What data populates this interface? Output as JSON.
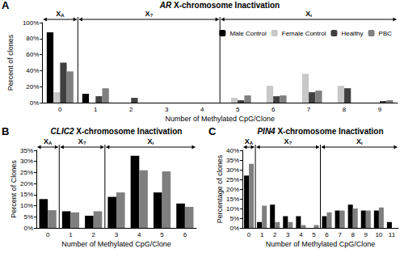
{
  "chart_data": [
    {
      "panel": "A",
      "type": "bar",
      "title": "AR X-chromosome Inactivation",
      "x_label": "Number of Methylated CpG/Clone",
      "y_label": "Percent of clones",
      "categories": [
        0,
        1,
        2,
        3,
        4,
        5,
        6,
        7,
        8,
        9
      ],
      "series": [
        {
          "name": "Male Control",
          "color": "#000000",
          "values": [
            88,
            11,
            0,
            0,
            0,
            0,
            0,
            0,
            0,
            0
          ]
        },
        {
          "name": "Female Control",
          "color": "#c8c8c8",
          "values": [
            13,
            0,
            0,
            0,
            0,
            6,
            21,
            36,
            21,
            0
          ]
        },
        {
          "name": "Healthy",
          "color": "#404040",
          "values": [
            50,
            8,
            6,
            0,
            0,
            3,
            8,
            13,
            18,
            2
          ]
        },
        {
          "name": "PBC",
          "color": "#808080",
          "values": [
            39,
            18,
            0,
            0,
            0,
            9,
            9,
            15,
            0,
            3
          ]
        }
      ],
      "ylim": [
        0,
        100
      ],
      "yticks": [
        {
          "value": 0,
          "label": "0%"
        },
        {
          "value": 20,
          "label": "20%"
        },
        {
          "value": 40,
          "label": "40%"
        },
        {
          "value": 60,
          "label": "60%"
        },
        {
          "value": 80,
          "label": "80%"
        },
        {
          "value": 100,
          "label": "100%"
        }
      ],
      "regions": [
        {
          "label": "X",
          "subscript": "A",
          "start": 0,
          "end": 0
        },
        {
          "label": "X",
          "subscript": "?",
          "start": 1,
          "end": 4
        },
        {
          "label": "X",
          "subscript": "i",
          "start": 5,
          "end": 9
        }
      ],
      "legend": "top-right",
      "grid": false
    },
    {
      "panel": "B",
      "type": "bar",
      "title": "CLIC2 X-chromosome Inactivation",
      "x_label": "Number of Methylated CpG/Clone",
      "y_label": "Percent of Clones",
      "categories": [
        0,
        1,
        2,
        3,
        4,
        5,
        6
      ],
      "series": [
        {
          "color": "#000000",
          "values": [
            13,
            7.5,
            5.5,
            14,
            32.5,
            16,
            11
          ]
        },
        {
          "color": "#7f7f7f",
          "values": [
            8,
            7,
            7.5,
            16,
            26,
            25.5,
            9.5
          ]
        }
      ],
      "ylim": [
        0,
        35
      ],
      "yticks": [
        {
          "value": 0,
          "label": "0%"
        },
        {
          "value": 5,
          "label": "5%"
        },
        {
          "value": 10,
          "label": "10%"
        },
        {
          "value": 15,
          "label": "15%"
        },
        {
          "value": 20,
          "label": "20%"
        },
        {
          "value": 25,
          "label": "25%"
        },
        {
          "value": 30,
          "label": "30%"
        },
        {
          "value": 35,
          "label": "35%"
        }
      ],
      "regions": [
        {
          "label": "X",
          "subscript": "A",
          "start": 0,
          "end": 0
        },
        {
          "label": "X",
          "subscript": "?",
          "start": 1,
          "end": 2
        },
        {
          "label": "X",
          "subscript": "i",
          "start": 3,
          "end": 6
        }
      ],
      "grid": false
    },
    {
      "panel": "C",
      "type": "bar",
      "title": "PIN4 X-chromosome Inactivation",
      "x_label": "Number of Methylated CpG/Clone",
      "y_label": "Percentage of clones",
      "categories": [
        0,
        1,
        2,
        3,
        4,
        5,
        6,
        7,
        8,
        9,
        10,
        11
      ],
      "series": [
        {
          "color": "#000000",
          "values": [
            27,
            3,
            12,
            6,
            6,
            0,
            6,
            9,
            12,
            9,
            9,
            3
          ]
        },
        {
          "color": "#7f7f7f",
          "values": [
            33,
            11.5,
            3,
            3,
            1.5,
            1.5,
            8,
            9,
            10,
            9,
            10.5,
            0
          ]
        }
      ],
      "ylim": [
        0,
        40
      ],
      "yticks": [
        {
          "value": 0,
          "label": "0%"
        },
        {
          "value": 5,
          "label": "5%"
        },
        {
          "value": 10,
          "label": "10%"
        },
        {
          "value": 15,
          "label": "15%"
        },
        {
          "value": 20,
          "label": "20%"
        },
        {
          "value": 25,
          "label": "25%"
        },
        {
          "value": 30,
          "label": "30%"
        },
        {
          "value": 35,
          "label": "35%"
        },
        {
          "value": 40,
          "label": "40%"
        }
      ],
      "regions": [
        {
          "label": "X",
          "subscript": "A",
          "start": 0,
          "end": 0
        },
        {
          "label": "X",
          "subscript": "?",
          "start": 1,
          "end": 5
        },
        {
          "label": "X",
          "subscript": "i",
          "start": 6,
          "end": 11
        }
      ],
      "grid": false
    }
  ]
}
